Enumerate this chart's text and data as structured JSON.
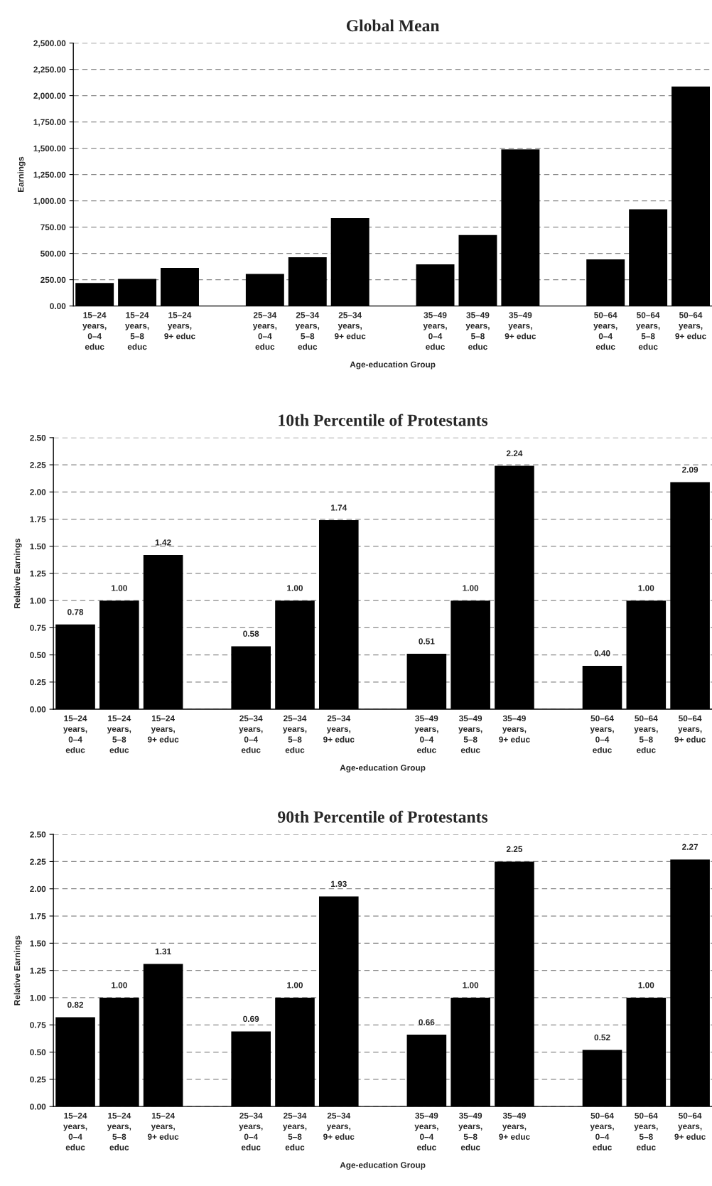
{
  "chart_data": [
    {
      "type": "bar",
      "title": "Global Mean",
      "xlabel": "Age-education Group",
      "ylabel": "Earnings",
      "categories": [
        "15–24 years, 0–4 educ",
        "15–24 years, 5–8 educ",
        "15–24 years, 9+ educ",
        null,
        "25–34 years, 0–4 educ",
        "25–34 years, 5–8 educ",
        "25–34 years, 9+ educ",
        null,
        "35–49 years, 0–4 educ",
        "35–49 years, 5–8 educ",
        "35–49 years, 9+ educ",
        null,
        "50–64 years, 0–4 educ",
        "50–64 years, 5–8 educ",
        "50–64 years, 9+ educ"
      ],
      "values": [
        219,
        257,
        363,
        null,
        304,
        464,
        835,
        null,
        396,
        675,
        1488,
        null,
        443,
        919,
        2087
      ],
      "color": "#000000",
      "ylim": [
        0,
        2500
      ],
      "yticks": [
        {
          "value": 0,
          "label": "0.00"
        },
        {
          "value": 250,
          "label": "250.00"
        },
        {
          "value": 500,
          "label": "500.00"
        },
        {
          "value": 750,
          "label": "750.00"
        },
        {
          "value": 1000,
          "label": "1,000.00"
        },
        {
          "value": 1250,
          "label": "1,250.00"
        },
        {
          "value": 1500,
          "label": "1,500.00"
        },
        {
          "value": 1750,
          "label": "1,750.00"
        },
        {
          "value": 2000,
          "label": "2,000.00"
        },
        {
          "value": 2250,
          "label": "2,250.00"
        },
        {
          "value": 2500,
          "label": "2,500.00"
        }
      ],
      "grid": "y"
    },
    {
      "type": "bar",
      "title": "10th Percentile of Protestants",
      "xlabel": "Age-education Group",
      "ylabel": "Relative Earnings",
      "categories": [
        "15–24 years, 0–4 educ",
        "15–24 years, 5–8 educ",
        "15–24 years, 9+ educ",
        null,
        "25–34 years, 0–4 educ",
        "25–34 years, 5–8 educ",
        "25–34 years, 9+ educ",
        null,
        "35–49 years, 0–4 educ",
        "35–49 years, 5–8 educ",
        "35–49 years, 9+ educ",
        null,
        "50–64 years, 0–4 educ",
        "50–64 years, 5–8 educ",
        "50–64 years, 9+ educ"
      ],
      "values": [
        0.78,
        1.0,
        1.42,
        null,
        0.58,
        1.0,
        1.74,
        null,
        0.51,
        1.0,
        2.24,
        null,
        0.4,
        1.0,
        2.09
      ],
      "value_labels": [
        "0.78",
        "1.00",
        "1.42",
        null,
        "0.58",
        "1.00",
        "1.74",
        null,
        "0.51",
        "1.00",
        "2.24",
        null,
        "0.40",
        "1.00",
        "2.09"
      ],
      "color": "#000000",
      "ylim": [
        0,
        2.5
      ],
      "yticks": [
        {
          "value": 0,
          "label": "0.00"
        },
        {
          "value": 0.25,
          "label": "0.25"
        },
        {
          "value": 0.5,
          "label": "0.50"
        },
        {
          "value": 0.75,
          "label": "0.75"
        },
        {
          "value": 1,
          "label": "1.00"
        },
        {
          "value": 1.25,
          "label": "1.25"
        },
        {
          "value": 1.5,
          "label": "1.50"
        },
        {
          "value": 1.75,
          "label": "1.75"
        },
        {
          "value": 2,
          "label": "2.00"
        },
        {
          "value": 2.25,
          "label": "2.25"
        },
        {
          "value": 2.5,
          "label": "2.50"
        }
      ],
      "grid": "y"
    },
    {
      "type": "bar",
      "title": "90th Percentile of Protestants",
      "xlabel": "Age-education Group",
      "ylabel": "Relative Earnings",
      "categories": [
        "15–24 years, 0–4 educ",
        "15–24 years, 5–8 educ",
        "15–24 years, 9+ educ",
        null,
        "25–34 years, 0–4 educ",
        "25–34 years, 5–8 educ",
        "25–34 years, 9+ educ",
        null,
        "35–49 years, 0–4 educ",
        "35–49 years, 5–8 educ",
        "35–49 years, 9+ educ",
        null,
        "50–64 years, 0–4 educ",
        "50–64 years, 5–8 educ",
        "50–64 years, 9+ educ"
      ],
      "values": [
        0.82,
        1.0,
        1.31,
        null,
        0.69,
        1.0,
        1.93,
        null,
        0.66,
        1.0,
        2.25,
        null,
        0.52,
        1.0,
        2.27
      ],
      "value_labels": [
        "0.82",
        "1.00",
        "1.31",
        null,
        "0.69",
        "1.00",
        "1.93",
        null,
        "0.66",
        "1.00",
        "2.25",
        null,
        "0.52",
        "1.00",
        "2.27"
      ],
      "color": "#000000",
      "ylim": [
        0,
        2.5
      ],
      "yticks": [
        {
          "value": 0,
          "label": "0.00"
        },
        {
          "value": 0.25,
          "label": "0.25"
        },
        {
          "value": 0.5,
          "label": "0.50"
        },
        {
          "value": 0.75,
          "label": "0.75"
        },
        {
          "value": 1,
          "label": "1.00"
        },
        {
          "value": 1.25,
          "label": "1.25"
        },
        {
          "value": 1.5,
          "label": "1.50"
        },
        {
          "value": 1.75,
          "label": "1.75"
        },
        {
          "value": 2,
          "label": "2.00"
        },
        {
          "value": 2.25,
          "label": "2.25"
        },
        {
          "value": 2.5,
          "label": "2.50"
        }
      ],
      "grid": "y"
    }
  ]
}
